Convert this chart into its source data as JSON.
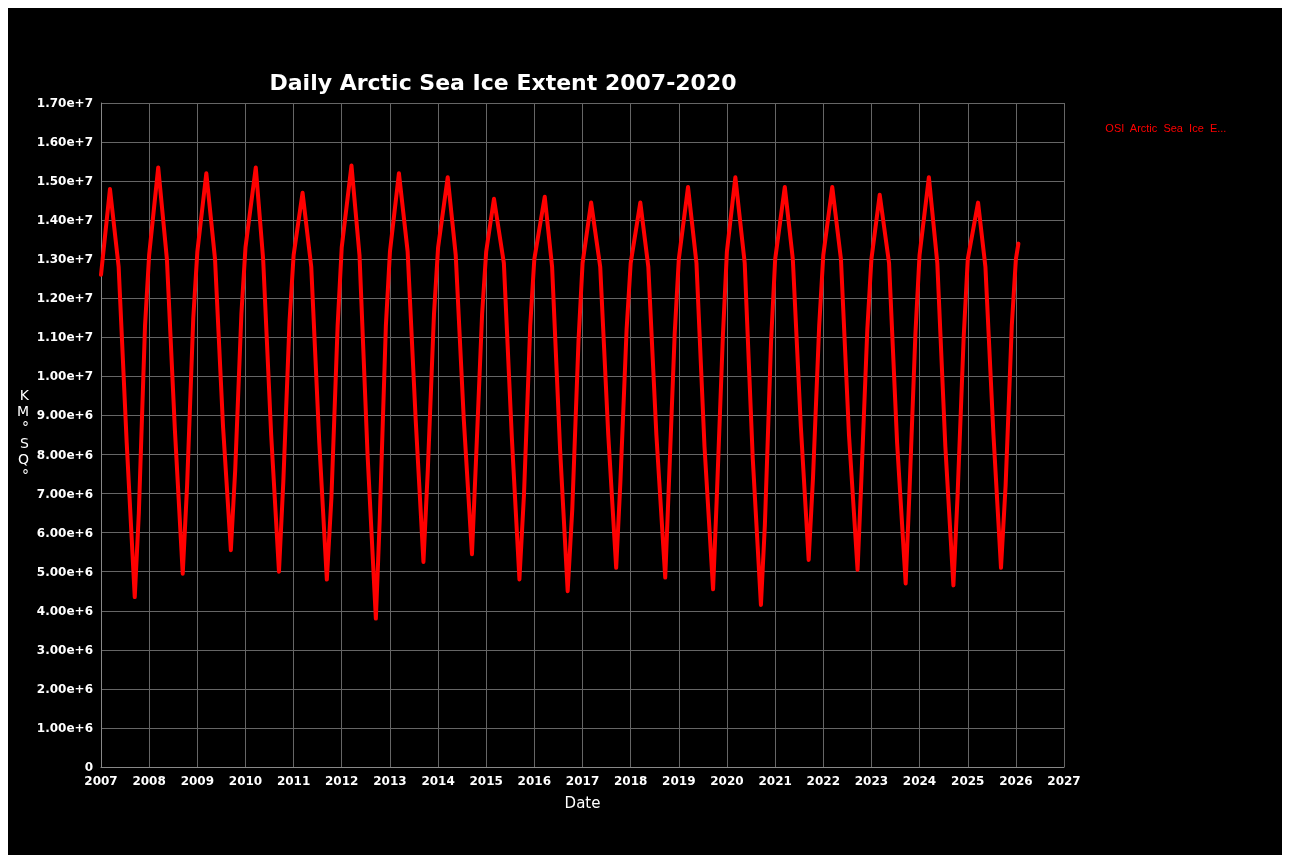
{
  "chart_data": {
    "type": "line",
    "title": "Daily Arctic Sea Ice Extent 2007-2020",
    "xlabel": "Date",
    "ylabel": "KM°SQ°",
    "series": [
      {
        "name": "OSI  Arctic  Sea  Ice  E...",
        "color": "#ff0000",
        "x": [
          "2007-01-01",
          "2007-03-10",
          "2007-05-15",
          "2007-07-15",
          "2007-09-14",
          "2007-10-15",
          "2007-12-01",
          "2008-01-01",
          "2008-03-10",
          "2008-05-15",
          "2008-07-15",
          "2008-09-12",
          "2008-10-15",
          "2008-12-01",
          "2009-01-01",
          "2009-03-10",
          "2009-05-15",
          "2009-07-15",
          "2009-09-12",
          "2009-10-15",
          "2009-12-01",
          "2010-01-01",
          "2010-03-20",
          "2010-05-15",
          "2010-07-15",
          "2010-09-12",
          "2010-10-15",
          "2010-12-01",
          "2011-01-01",
          "2011-03-10",
          "2011-05-15",
          "2011-07-15",
          "2011-09-10",
          "2011-10-15",
          "2011-12-01",
          "2012-01-01",
          "2012-03-15",
          "2012-05-15",
          "2012-07-15",
          "2012-09-16",
          "2012-10-15",
          "2012-12-01",
          "2013-01-01",
          "2013-03-10",
          "2013-05-15",
          "2013-07-15",
          "2013-09-12",
          "2013-10-15",
          "2013-12-01",
          "2014-01-01",
          "2014-03-15",
          "2014-05-15",
          "2014-07-15",
          "2014-09-15",
          "2014-10-15",
          "2014-12-01",
          "2015-01-01",
          "2015-03-01",
          "2015-05-15",
          "2015-07-15",
          "2015-09-10",
          "2015-10-15",
          "2015-12-01",
          "2016-01-01",
          "2016-03-20",
          "2016-05-15",
          "2016-07-15",
          "2016-09-10",
          "2016-10-15",
          "2016-12-01",
          "2017-01-01",
          "2017-03-07",
          "2017-05-15",
          "2017-07-15",
          "2017-09-13",
          "2017-10-15",
          "2017-12-01",
          "2018-01-01",
          "2018-03-15",
          "2018-05-15",
          "2018-07-15",
          "2018-09-20",
          "2018-10-15",
          "2018-12-01",
          "2019-01-01",
          "2019-03-12",
          "2019-05-15",
          "2019-07-15",
          "2019-09-18",
          "2019-10-15",
          "2019-12-01",
          "2020-01-01",
          "2020-03-05",
          "2020-05-15",
          "2020-07-15",
          "2020-09-15",
          "2020-10-15",
          "2020-12-01",
          "2021-01-01",
          "2021-03-15",
          "2021-05-15",
          "2021-07-15",
          "2021-09-12",
          "2021-10-15",
          "2021-12-01",
          "2022-01-01",
          "2022-03-10",
          "2022-05-15",
          "2022-07-15",
          "2022-09-18",
          "2022-10-15",
          "2022-12-01",
          "2023-01-01",
          "2023-03-05",
          "2023-05-15",
          "2023-07-15",
          "2023-09-18",
          "2023-10-15",
          "2023-12-01",
          "2024-01-01",
          "2024-03-12",
          "2024-05-15",
          "2024-07-15",
          "2024-09-14",
          "2024-10-15",
          "2024-12-01",
          "2025-01-01",
          "2025-03-20",
          "2025-05-15",
          "2025-07-15",
          "2025-09-10",
          "2025-10-15",
          "2025-12-01",
          "2026-01-01",
          "2026-01-20"
        ],
        "values": [
          12600000,
          14800000,
          12800000,
          8300000,
          4350000,
          6500000,
          11300000,
          13100000,
          15350000,
          13000000,
          8600000,
          4950000,
          7200000,
          11500000,
          13200000,
          15200000,
          13000000,
          8700000,
          5550000,
          7600000,
          11600000,
          13300000,
          15350000,
          13000000,
          8500000,
          5000000,
          7300000,
          11400000,
          13100000,
          14700000,
          12800000,
          8300000,
          4800000,
          6900000,
          11300000,
          13300000,
          15400000,
          13100000,
          8000000,
          3800000,
          6300000,
          11300000,
          13200000,
          15200000,
          13200000,
          8900000,
          5250000,
          7600000,
          11600000,
          13300000,
          15100000,
          13100000,
          8900000,
          5450000,
          7800000,
          11600000,
          13200000,
          14550000,
          12900000,
          8400000,
          4800000,
          7000000,
          11300000,
          13000000,
          14600000,
          12800000,
          8100000,
          4500000,
          6600000,
          10900000,
          12900000,
          14450000,
          12800000,
          8500000,
          5100000,
          7300000,
          11200000,
          12900000,
          14450000,
          12800000,
          8500000,
          4850000,
          7000000,
          11100000,
          13000000,
          14850000,
          12900000,
          8200000,
          4550000,
          6800000,
          11000000,
          13200000,
          15100000,
          12900000,
          7900000,
          4150000,
          6200000,
          10900000,
          13000000,
          14850000,
          13000000,
          8700000,
          5300000,
          7400000,
          11300000,
          13100000,
          14850000,
          13000000,
          8500000,
          5050000,
          7200000,
          11200000,
          13000000,
          14650000,
          12900000,
          8300000,
          4700000,
          6900000,
          11100000,
          13100000,
          15100000,
          12900000,
          8200000,
          4650000,
          6900000,
          11000000,
          13000000,
          14450000,
          12800000,
          8500000,
          5100000,
          7200000,
          11300000,
          13000000,
          13400000
        ]
      }
    ],
    "xlim": [
      "2007",
      "2027"
    ],
    "xticks": [
      "2007",
      "2008",
      "2009",
      "2010",
      "2011",
      "2012",
      "2013",
      "2014",
      "2015",
      "2016",
      "2017",
      "2018",
      "2019",
      "2020",
      "2021",
      "2022",
      "2023",
      "2024",
      "2025",
      "2026",
      "2027"
    ],
    "ylim": [
      0,
      17000000
    ],
    "yticks": [
      0,
      {
        "value": 1000000,
        "label": "1.00e+6"
      },
      {
        "value": 2000000,
        "label": "2.00e+6"
      },
      {
        "value": 3000000,
        "label": "3.00e+6"
      },
      {
        "value": 4000000,
        "label": "4.00e+6"
      },
      {
        "value": 5000000,
        "label": "5.00e+6"
      },
      {
        "value": 6000000,
        "label": "6.00e+6"
      },
      {
        "value": 7000000,
        "label": "7.00e+6"
      },
      {
        "value": 8000000,
        "label": "8.00e+6"
      },
      {
        "value": 9000000,
        "label": "9.00e+6"
      },
      {
        "value": 10000000,
        "label": "1.00e+7"
      },
      {
        "value": 11000000,
        "label": "1.10e+7"
      },
      {
        "value": 12000000,
        "label": "1.20e+7"
      },
      {
        "value": 13000000,
        "label": "1.30e+7"
      },
      {
        "value": 14000000,
        "label": "1.40e+7"
      },
      {
        "value": 15000000,
        "label": "1.50e+7"
      },
      {
        "value": 16000000,
        "label": "1.60e+7"
      },
      {
        "value": 17000000,
        "label": "1.70e+7"
      }
    ],
    "grid": true,
    "legend": "top right",
    "marker": "none",
    "line_style": "solid"
  }
}
